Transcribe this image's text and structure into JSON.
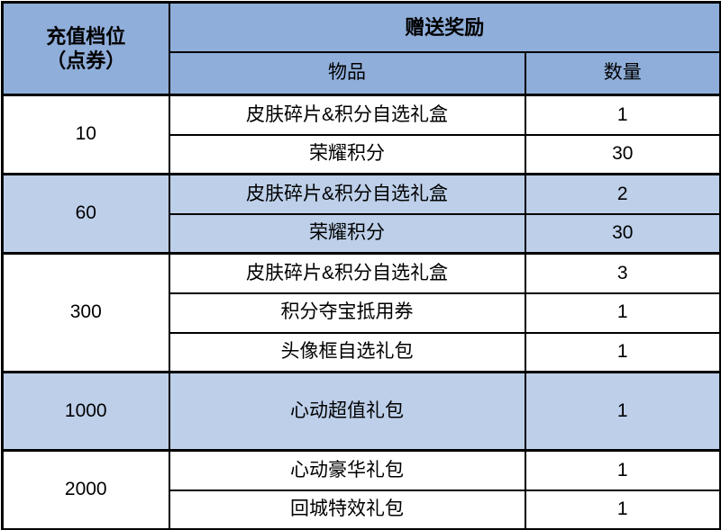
{
  "table": {
    "header": {
      "tier_label_line1": "充值档位",
      "tier_label_line2": "（点券）",
      "reward_label": "赠送奖励",
      "item_label": "物品",
      "qty_label": "数量"
    },
    "colors": {
      "header_bg": "#8FAEDA",
      "shaded_row_bg": "#BDCFE9",
      "plain_row_bg": "#FFFFFF",
      "border": "#000000",
      "text": "#000000"
    },
    "tiers": [
      {
        "tier": "10",
        "shaded": false,
        "rewards": [
          {
            "item": "皮肤碎片&积分自选礼盒",
            "qty": "1"
          },
          {
            "item": "荣耀积分",
            "qty": "30"
          }
        ]
      },
      {
        "tier": "60",
        "shaded": true,
        "rewards": [
          {
            "item": "皮肤碎片&积分自选礼盒",
            "qty": "2"
          },
          {
            "item": "荣耀积分",
            "qty": "30"
          }
        ]
      },
      {
        "tier": "300",
        "shaded": false,
        "rewards": [
          {
            "item": "皮肤碎片&积分自选礼盒",
            "qty": "3"
          },
          {
            "item": "积分夺宝抵用券",
            "qty": "1"
          },
          {
            "item": "头像框自选礼包",
            "qty": "1"
          }
        ]
      },
      {
        "tier": "1000",
        "shaded": true,
        "rewards": [
          {
            "item": "心动超值礼包",
            "qty": "1"
          }
        ]
      },
      {
        "tier": "2000",
        "shaded": false,
        "rewards": [
          {
            "item": "心动豪华礼包",
            "qty": "1"
          },
          {
            "item": "回城特效礼包",
            "qty": "1"
          }
        ]
      }
    ]
  }
}
